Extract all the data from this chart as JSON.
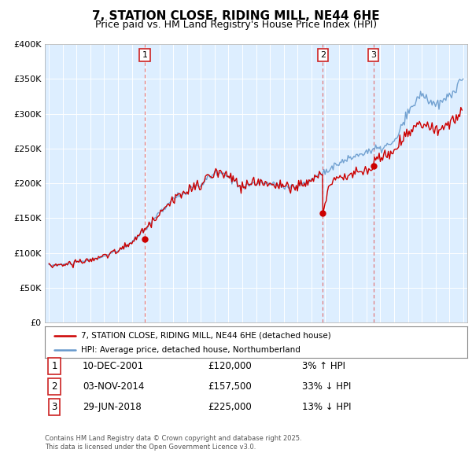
{
  "title": "7, STATION CLOSE, RIDING MILL, NE44 6HE",
  "subtitle": "Price paid vs. HM Land Registry's House Price Index (HPI)",
  "legend_line1": "7, STATION CLOSE, RIDING MILL, NE44 6HE (detached house)",
  "legend_line2": "HPI: Average price, detached house, Northumberland",
  "footer": "Contains HM Land Registry data © Crown copyright and database right 2025.\nThis data is licensed under the Open Government Licence v3.0.",
  "sale_markers": [
    {
      "num": 1,
      "date": "10-DEC-2001",
      "price": "£120,000",
      "pct": "3% ↑ HPI",
      "x_year": 2001.94
    },
    {
      "num": 2,
      "date": "03-NOV-2014",
      "price": "£157,500",
      "pct": "33% ↓ HPI",
      "x_year": 2014.84
    },
    {
      "num": 3,
      "date": "29-JUN-2018",
      "price": "£225,000",
      "pct": "13% ↓ HPI",
      "x_year": 2018.5
    }
  ],
  "hpi_color": "#6699cc",
  "price_color": "#cc0000",
  "vline_color": "#e06060",
  "plot_bg_color": "#ddeeff",
  "grid_color": "#c0cfe0",
  "ylim": [
    0,
    400000
  ],
  "yticks": [
    0,
    50000,
    100000,
    150000,
    200000,
    250000,
    300000,
    350000,
    400000
  ],
  "ytick_labels": [
    "£0",
    "£50K",
    "£100K",
    "£150K",
    "£200K",
    "£250K",
    "£300K",
    "£350K",
    "£400K"
  ],
  "xlim": [
    1994.7,
    2025.3
  ]
}
